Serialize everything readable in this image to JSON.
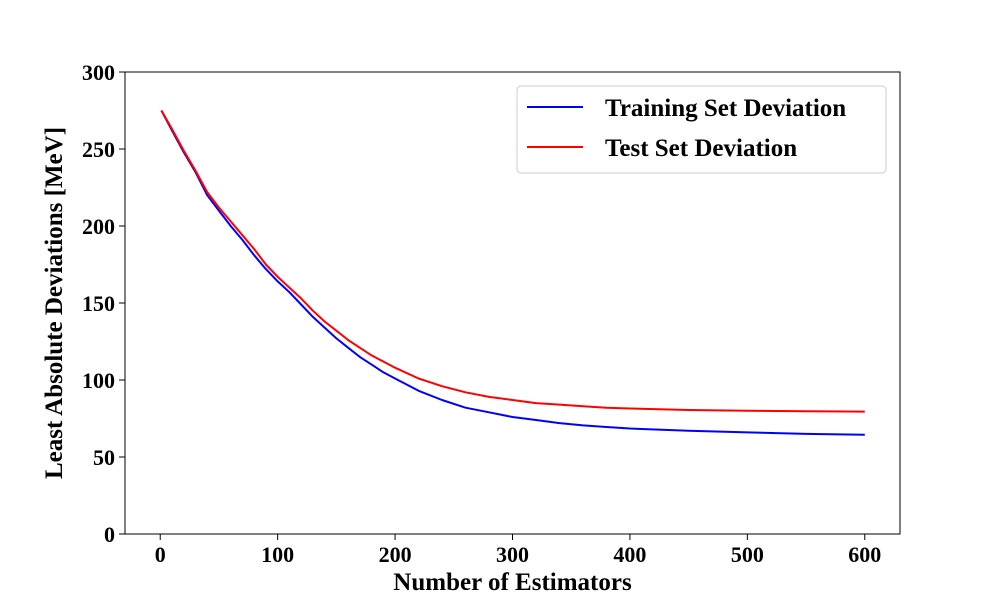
{
  "chart_data": {
    "type": "line",
    "title": "",
    "xlabel": "Number of Estimators",
    "ylabel": "Least Absolute Deviations [MeV]",
    "xlim": [
      -30,
      630
    ],
    "ylim": [
      0,
      300
    ],
    "x_ticks": [
      0,
      100,
      200,
      300,
      400,
      500,
      600
    ],
    "y_ticks": [
      0,
      50,
      100,
      150,
      200,
      250,
      300
    ],
    "legend_position": "top-right",
    "grid": false,
    "x": [
      1,
      10,
      20,
      30,
      40,
      50,
      60,
      70,
      80,
      90,
      100,
      110,
      120,
      130,
      140,
      150,
      160,
      170,
      180,
      190,
      200,
      220,
      240,
      260,
      280,
      300,
      320,
      340,
      360,
      380,
      400,
      450,
      500,
      550,
      600
    ],
    "series": [
      {
        "name": "Training Set Deviation",
        "color": "#0000ff",
        "values": [
          275,
          262,
          248,
          235,
          220,
          210,
          200,
          191,
          181,
          172,
          164,
          157,
          149,
          141,
          134,
          127,
          121,
          115,
          110,
          105,
          101,
          93,
          87,
          82,
          79,
          76,
          74,
          72,
          70.5,
          69.5,
          68.5,
          67,
          66,
          65,
          64.5
        ]
      },
      {
        "name": "Test Set Deviation",
        "color": "#ff0000",
        "values": [
          275,
          263,
          249,
          236,
          222,
          212,
          203,
          194,
          185,
          175,
          167,
          160,
          153,
          145,
          138,
          132,
          126,
          121,
          116,
          112,
          108,
          101,
          96,
          92,
          89,
          87,
          85,
          84,
          83,
          82,
          81.5,
          80.5,
          80,
          79.7,
          79.5
        ]
      }
    ]
  }
}
